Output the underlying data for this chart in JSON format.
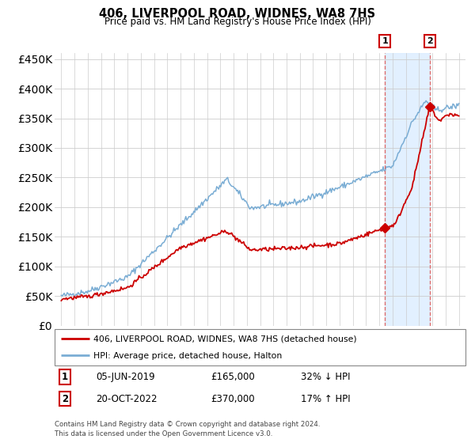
{
  "title": "406, LIVERPOOL ROAD, WIDNES, WA8 7HS",
  "subtitle": "Price paid vs. HM Land Registry's House Price Index (HPI)",
  "legend_line1": "406, LIVERPOOL ROAD, WIDNES, WA8 7HS (detached house)",
  "legend_line2": "HPI: Average price, detached house, Halton",
  "annotation1_date": "05-JUN-2019",
  "annotation1_price": "£165,000",
  "annotation1_hpi": "32% ↓ HPI",
  "annotation1_year": 2019.43,
  "annotation1_value": 165000,
  "annotation2_date": "20-OCT-2022",
  "annotation2_price": "£370,000",
  "annotation2_hpi": "17% ↑ HPI",
  "annotation2_year": 2022.8,
  "annotation2_value": 370000,
  "hpi_line_color": "#7aadd4",
  "price_line_color": "#cc0000",
  "vline_color": "#dd6666",
  "shade_color": "#ddeeff",
  "ylim": [
    0,
    460000
  ],
  "yticks": [
    0,
    50000,
    100000,
    150000,
    200000,
    250000,
    300000,
    350000,
    400000,
    450000
  ],
  "background_color": "#ffffff",
  "grid_color": "#cccccc",
  "footer_text": "Contains HM Land Registry data © Crown copyright and database right 2024.\nThis data is licensed under the Open Government Licence v3.0."
}
